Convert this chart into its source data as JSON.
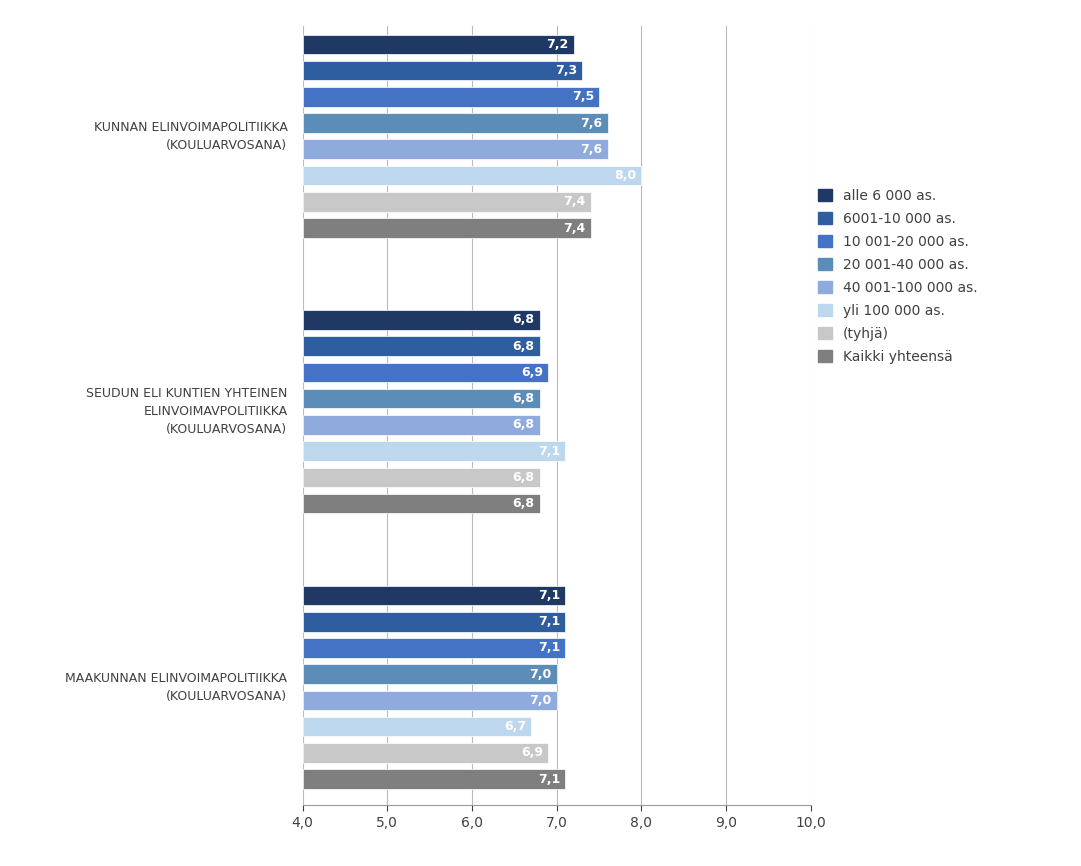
{
  "groups": [
    {
      "label": "KUNNAN ELINVOIMAPOLITIIKKA\n(KOULUARVOSANA)",
      "values": [
        7.2,
        7.3,
        7.5,
        7.6,
        7.6,
        8.0,
        7.4,
        7.4
      ]
    },
    {
      "label": "SEUDUN ELI KUNTIEN YHTEINEN\nELINVOIMAVPOLITIIKKA\n(KOULUARVOSANA)",
      "values": [
        6.8,
        6.8,
        6.9,
        6.8,
        6.8,
        7.1,
        6.8,
        6.8
      ]
    },
    {
      "label": "MAAKUNNAN ELINVOIMAPOLITIIKKA\n(KOULUARVOSANA)",
      "values": [
        7.1,
        7.1,
        7.1,
        7.0,
        7.0,
        6.7,
        6.9,
        7.1
      ]
    }
  ],
  "series_labels": [
    "alle 6 000 as.",
    "6001-10 000 as.",
    "10 001-20 000 as.",
    "20 001-40 000 as.",
    "40 001-100 000 as.",
    "yli 100 000 as.",
    "(tyhjä)",
    "Kaikki yhteensä"
  ],
  "colors": [
    "#1F3864",
    "#2E5DA0",
    "#4472C4",
    "#5B8DB8",
    "#8FAADC",
    "#BDD7EE",
    "#C8C8C8",
    "#7F7F7F"
  ],
  "xlim_min": 4.0,
  "xlim_max": 10.0,
  "xticks": [
    4.0,
    5.0,
    6.0,
    7.0,
    8.0,
    9.0,
    10.0
  ],
  "group_labels": [
    "KUNNAN ELINVOIMAPOLITIIKKA\n(KOULUARVOSANA)",
    "SEUDUN ELI KUNTIEN YHTEINEN\nELINVOIMAVPOLITIIKKA\n(KOULUARVOSANA)",
    "MAAKUNNAN ELINVOIMAPOLITIIKKA\n(KOULUARVOSANA)"
  ],
  "label_fontsize": 9,
  "value_fontsize": 9,
  "tick_fontsize": 10,
  "legend_fontsize": 10,
  "background_color": "#FFFFFF",
  "text_color": "#404040"
}
